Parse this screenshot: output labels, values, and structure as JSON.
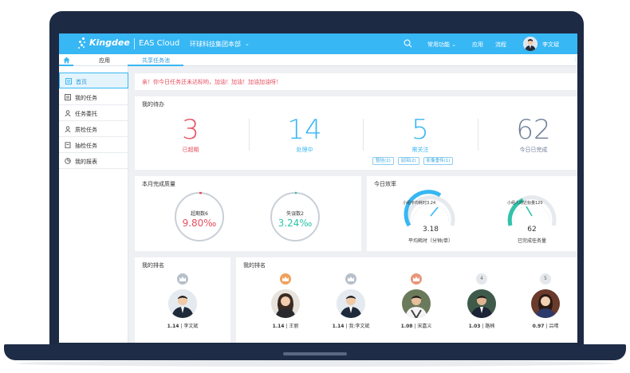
{
  "topbar": {
    "brand": "Kingdee",
    "product": "EAS Cloud",
    "org": "环球科技集团本部",
    "menu_common": "常用功能",
    "menu_app": "应用",
    "menu_flow": "流程",
    "user_name": "李文斌"
  },
  "tabs": {
    "app": "应用",
    "share": "共享任务池"
  },
  "sidebar": {
    "items": [
      {
        "label": "首页"
      },
      {
        "label": "我的任务"
      },
      {
        "label": "任务委托"
      },
      {
        "label": "质检任务"
      },
      {
        "label": "抽检任务"
      },
      {
        "label": "我的报表"
      }
    ]
  },
  "notice": "亲！你今日任务还未达标哟，加油！加油！加油加油呀！",
  "todo": {
    "title": "我的待办",
    "stats": [
      {
        "value": "3",
        "label": "已超期",
        "color": "#e5505f"
      },
      {
        "value": "14",
        "label": "处理中",
        "color": "#37b7f4"
      },
      {
        "value": "5",
        "label": "需关注",
        "color": "#37b7f4"
      },
      {
        "value": "62",
        "label": "今日已完成",
        "color": "#6e7e98"
      }
    ],
    "pills": [
      "暂挂(2)",
      "驳回(2)",
      "影像重传(1)"
    ]
  },
  "quality": {
    "title": "本月完成质量",
    "overdue_label": "超期数6",
    "overdue_value": "9.80‰",
    "overdue_color": "#e5505f",
    "error_label": "失误数2",
    "error_value": "3.24‰",
    "error_color": "#2fc3a9"
  },
  "efficiency": {
    "title": "今日效率",
    "avg_gauge_label": "小组平均耗时3.24",
    "avg_value": "3.18",
    "avg_caption": "平均耗时（分钟/单）",
    "done_gauge_label": "小组人均达标量120",
    "done_value": "62",
    "done_caption": "已完成任务量"
  },
  "rank_mine": {
    "title": "我的排名",
    "entry": {
      "score": "1.14",
      "name": "李文斌"
    }
  },
  "rank_list": {
    "title": "我的排名",
    "entries": [
      {
        "badge": "crown-gold",
        "score": "1.14",
        "name": "王丽"
      },
      {
        "badge": "crown-silver",
        "score": "1.14",
        "name": "我:李文斌"
      },
      {
        "badge": "crown-bronze",
        "score": "1.08",
        "name": "宋嘉义"
      },
      {
        "badge": "4",
        "score": "1.03",
        "name": "路楠"
      },
      {
        "badge": "5",
        "score": "0.97",
        "name": "吕晴"
      }
    ]
  }
}
